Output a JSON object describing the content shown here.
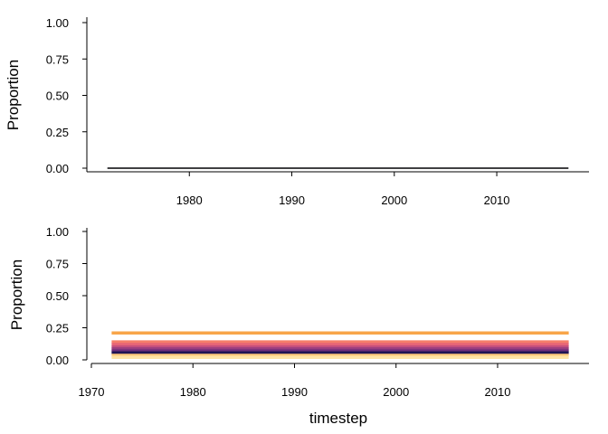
{
  "chart_data": [
    {
      "type": "line",
      "ylabel": "Proportion",
      "xlabel": "",
      "ylim": [
        0,
        1
      ],
      "xlim": [
        1970,
        2019
      ],
      "y_ticks": [
        "0.00",
        "0.25",
        "0.50",
        "0.75",
        "1.00"
      ],
      "x_ticks": [
        "1980",
        "1990",
        "2000",
        "2010"
      ],
      "x": [
        1972,
        2017
      ],
      "series": [
        {
          "values": [
            0.0,
            0.0
          ],
          "color": "#000004"
        }
      ]
    },
    {
      "type": "line",
      "ylabel": "Proportion",
      "xlabel": "timestep",
      "ylim": [
        0,
        1
      ],
      "xlim": [
        1970,
        2019
      ],
      "y_ticks": [
        "0.00",
        "0.25",
        "0.50",
        "0.75",
        "1.00"
      ],
      "x_ticks": [
        "1970",
        "1980",
        "1990",
        "2000",
        "2010"
      ],
      "x": [
        1972,
        2017
      ],
      "series": [
        {
          "values": [
            0.21,
            0.21
          ],
          "color": "#F8A549"
        },
        {
          "values": [
            0.14,
            0.14
          ],
          "color": "#F57E6A"
        },
        {
          "values": [
            0.12,
            0.12
          ],
          "color": "#E66577"
        },
        {
          "values": [
            0.1,
            0.1
          ],
          "color": "#C44F7E"
        },
        {
          "values": [
            0.085,
            0.085
          ],
          "color": "#9A3D7F"
        },
        {
          "values": [
            0.07,
            0.07
          ],
          "color": "#6D2E7A"
        },
        {
          "values": [
            0.055,
            0.055
          ],
          "color": "#1E1554"
        },
        {
          "values": [
            0.035,
            0.035
          ],
          "color": "#FDC97A"
        },
        {
          "values": [
            0.02,
            0.02
          ],
          "color": "#FDE4A6"
        }
      ]
    }
  ]
}
